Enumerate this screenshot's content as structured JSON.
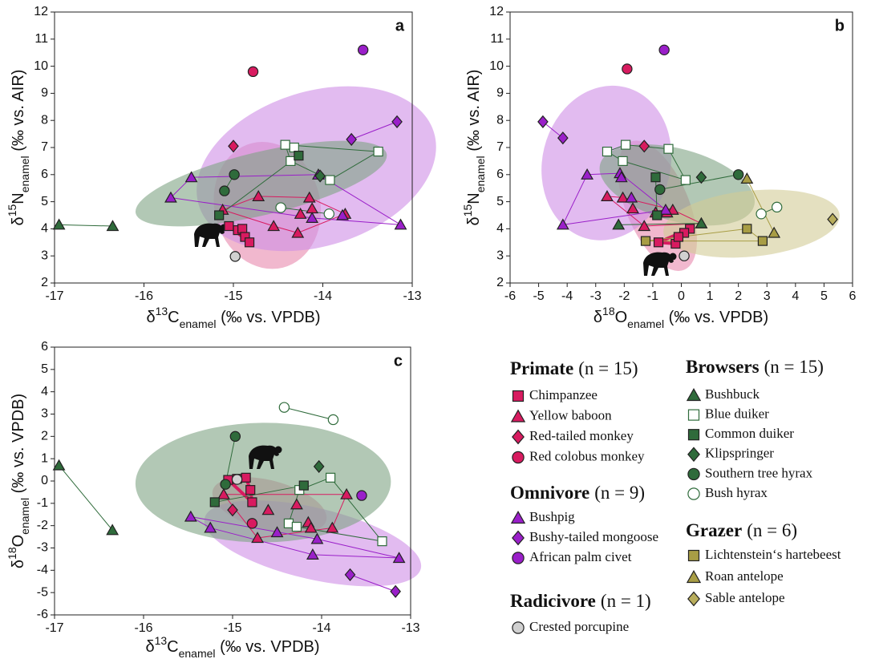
{
  "chart_data": [
    {
      "type": "scatter",
      "panel": "a",
      "xlabel": {
        "symbol": "δ",
        "sup": "13",
        "element": "C",
        "sub": "enamel",
        "unit": " (‰ vs. VPDB)"
      },
      "ylabel": {
        "symbol": "δ",
        "sup": "15",
        "element": "N",
        "sub": "enamel",
        "unit": " (‰ vs. AIR)"
      },
      "xlim": [
        -17,
        -13
      ],
      "xticks": [
        -17,
        -16,
        -15,
        -14,
        -13
      ],
      "ylim": [
        2,
        12
      ],
      "yticks": [
        2,
        3,
        4,
        5,
        6,
        7,
        8,
        9,
        10,
        11,
        12
      ],
      "series": [
        {
          "x": [
            -15.05,
            -14.95,
            -14.9,
            -14.87,
            -14.82
          ],
          "values": [
            4.1,
            3.95,
            4.0,
            3.7,
            3.5
          ]
        },
        {
          "x": [
            -15.12,
            -14.72,
            -14.55,
            -14.28,
            -14.15,
            -14.12,
            -14.25,
            -13.75
          ],
          "values": [
            4.7,
            5.2,
            4.1,
            3.85,
            5.15,
            4.75,
            4.55,
            4.55
          ]
        },
        {
          "x": [
            -15.0
          ],
          "values": [
            7.05
          ]
        },
        {
          "x": [
            -14.78
          ],
          "values": [
            9.8
          ]
        },
        {
          "x": [
            -15.47,
            -15.7,
            -14.05,
            -14.12,
            -13.13,
            -13.78
          ],
          "values": [
            5.9,
            5.15,
            6.0,
            4.4,
            4.15,
            4.5
          ]
        },
        {
          "x": [
            -13.68,
            -13.17
          ],
          "values": [
            7.3,
            7.95
          ]
        },
        {
          "x": [
            -13.55
          ],
          "values": [
            10.6
          ]
        },
        {
          "x": [
            -14.98
          ],
          "values": [
            2.98
          ]
        },
        {
          "x": [
            -16.95,
            -16.35
          ],
          "values": [
            4.15,
            4.1
          ]
        },
        {
          "x": [
            -14.42,
            -14.32,
            -14.36,
            -13.92,
            -13.38
          ],
          "values": [
            7.1,
            7.0,
            6.5,
            5.8,
            6.85
          ]
        },
        {
          "x": [
            -15.16,
            -14.27
          ],
          "values": [
            4.5,
            6.7
          ]
        },
        {
          "x": [
            -14.03
          ],
          "values": [
            5.95
          ]
        },
        {
          "x": [
            -14.99,
            -15.1
          ],
          "values": [
            6.0,
            5.4
          ]
        },
        {
          "x": [
            -14.47,
            -13.93
          ],
          "values": [
            4.78,
            4.55
          ]
        },
        {
          "x": [],
          "values": []
        },
        {
          "x": [],
          "values": []
        },
        {
          "x": [],
          "values": []
        }
      ]
    },
    {
      "type": "scatter",
      "panel": "b",
      "xlabel": {
        "symbol": "δ",
        "sup": "18",
        "element": "O",
        "sub": "enamel",
        "unit": " (‰ vs. VPDB)"
      },
      "ylabel": {
        "symbol": "δ",
        "sup": "15",
        "element": "N",
        "sub": "enamel",
        "unit": " (‰ vs. AIR)"
      },
      "xlim": [
        -6,
        6
      ],
      "xticks": [
        -6,
        -5,
        -4,
        -3,
        -2,
        -1,
        0,
        1,
        2,
        3,
        4,
        5,
        6
      ],
      "ylim": [
        2,
        12
      ],
      "yticks": [
        2,
        3,
        4,
        5,
        6,
        7,
        8,
        9,
        10,
        11,
        12
      ],
      "series": [
        {
          "x": [
            -0.8,
            -0.2,
            0.3,
            0.1,
            -0.1
          ],
          "values": [
            3.5,
            3.45,
            4.0,
            3.85,
            3.7
          ]
        },
        {
          "x": [
            -2.6,
            -2.05,
            -1.7,
            -1.3,
            -0.9,
            -0.5,
            -0.3,
            0.7
          ],
          "values": [
            5.2,
            5.15,
            4.75,
            4.1,
            4.6,
            4.6,
            4.7,
            4.2
          ]
        },
        {
          "x": [
            -1.3
          ],
          "values": [
            7.05
          ]
        },
        {
          "x": [
            -1.9
          ],
          "values": [
            9.9
          ]
        },
        {
          "x": [
            -4.15,
            -3.3,
            -2.15,
            -2.1,
            -1.75,
            -0.55
          ],
          "values": [
            4.15,
            6.0,
            6.05,
            5.9,
            5.15,
            4.7
          ]
        },
        {
          "x": [
            -4.85,
            -4.15
          ],
          "values": [
            7.95,
            7.35
          ]
        },
        {
          "x": [
            -0.6
          ],
          "values": [
            10.6
          ]
        },
        {
          "x": [
            0.1
          ],
          "values": [
            3.0
          ]
        },
        {
          "x": [
            -2.2,
            0.7
          ],
          "values": [
            4.15,
            4.2
          ]
        },
        {
          "x": [
            -2.6,
            -1.95,
            -2.05,
            -0.45,
            0.15
          ],
          "values": [
            6.85,
            7.1,
            6.5,
            6.95,
            5.8
          ]
        },
        {
          "x": [
            -0.9,
            -0.85
          ],
          "values": [
            5.9,
            4.5
          ]
        },
        {
          "x": [
            0.7
          ],
          "values": [
            5.9
          ]
        },
        {
          "x": [
            -0.75,
            2.0
          ],
          "values": [
            5.45,
            6.0
          ]
        },
        {
          "x": [
            2.8,
            3.35
          ],
          "values": [
            4.55,
            4.8
          ]
        },
        {
          "x": [
            -1.25,
            2.3,
            2.85
          ],
          "values": [
            3.55,
            4.0,
            3.55
          ]
        },
        {
          "x": [
            2.3,
            3.25
          ],
          "values": [
            5.85,
            3.85
          ]
        },
        {
          "x": [
            5.3
          ],
          "values": [
            4.35
          ]
        }
      ]
    },
    {
      "type": "scatter",
      "panel": "c",
      "xlabel": {
        "symbol": "δ",
        "sup": "13",
        "element": "C",
        "sub": "enamel",
        "unit": " (‰ vs. VPDB)"
      },
      "ylabel": {
        "symbol": "δ",
        "sup": "18",
        "element": "O",
        "sub": "enamel",
        "unit": " (‰ vs. VPDB)"
      },
      "xlim": [
        -17,
        -13
      ],
      "xticks": [
        -17,
        -16,
        -15,
        -14,
        -13
      ],
      "ylim": [
        -6,
        6
      ],
      "yticks": [
        -6,
        -5,
        -4,
        -3,
        -2,
        -1,
        0,
        1,
        2,
        3,
        4,
        5,
        6
      ],
      "series": [
        {
          "x": [
            -15.05,
            -14.95,
            -14.85,
            -14.8,
            -14.78
          ],
          "values": [
            0.05,
            0.1,
            0.15,
            -0.4,
            -0.95
          ]
        },
        {
          "x": [
            -15.1,
            -14.72,
            -14.6,
            -14.28,
            -14.15,
            -14.12,
            -13.88,
            -13.72
          ],
          "values": [
            -0.6,
            -2.55,
            -1.3,
            -1.05,
            -1.85,
            -2.1,
            -2.1,
            -0.6
          ]
        },
        {
          "x": [
            -15.0
          ],
          "values": [
            -1.3
          ]
        },
        {
          "x": [
            -14.78
          ],
          "values": [
            -1.9
          ]
        },
        {
          "x": [
            -15.47,
            -15.25,
            -14.05,
            -14.1,
            -13.13,
            -14.5
          ],
          "values": [
            -1.6,
            -2.1,
            -2.6,
            -3.3,
            -3.45,
            -2.3
          ]
        },
        {
          "x": [
            -13.68,
            -13.17
          ],
          "values": [
            -4.2,
            -4.95
          ]
        },
        {
          "x": [
            -13.55
          ],
          "values": [
            -0.65
          ]
        },
        {
          "x": [
            -14.95
          ],
          "values": [
            0.07
          ]
        },
        {
          "x": [
            -16.95,
            -16.35
          ],
          "values": [
            0.7,
            -2.2
          ]
        },
        {
          "x": [
            -14.37,
            -14.28,
            -14.25,
            -13.9,
            -13.32
          ],
          "values": [
            -1.9,
            -2.05,
            -0.4,
            0.15,
            -2.7
          ]
        },
        {
          "x": [
            -15.2,
            -14.2
          ],
          "values": [
            -0.95,
            -0.2
          ]
        },
        {
          "x": [
            -14.03
          ],
          "values": [
            0.65
          ]
        },
        {
          "x": [
            -14.97,
            -15.08
          ],
          "values": [
            2.0,
            -0.15
          ]
        },
        {
          "x": [
            -14.42,
            -13.87
          ],
          "values": [
            3.3,
            2.75
          ]
        },
        {
          "x": [],
          "values": []
        },
        {
          "x": [],
          "values": []
        },
        {
          "x": [],
          "values": []
        }
      ]
    }
  ],
  "legend": {
    "groups": [
      {
        "title": "Primate",
        "count": "(n = 15)",
        "color": "#e889ad",
        "items": [
          {
            "name": "Chimpanzee",
            "marker": "square",
            "color": "#d81b60",
            "edge": "#222222"
          },
          {
            "name": "Yellow baboon",
            "marker": "triangle",
            "color": "#d81b60",
            "edge": "#222222"
          },
          {
            "name": "Red-tailed monkey",
            "marker": "diamond",
            "color": "#d81b60",
            "edge": "#222222"
          },
          {
            "name": "Red colobus monkey",
            "marker": "circle",
            "color": "#d81b60",
            "edge": "#222222"
          }
        ]
      },
      {
        "title": "Omnivore",
        "count": "(n = 9)",
        "color": "#cf8ee6",
        "items": [
          {
            "name": "Bushpig",
            "marker": "triangle",
            "color": "#9a1fc9",
            "edge": "#222222"
          },
          {
            "name": "Bushy-tailed mongoose",
            "marker": "diamond",
            "color": "#9a1fc9",
            "edge": "#222222"
          },
          {
            "name": "African palm civet",
            "marker": "circle",
            "color": "#9a1fc9",
            "edge": "#222222"
          }
        ]
      },
      {
        "title": "Radicivore",
        "count": "(n = 1)",
        "color": "#cccccc",
        "items": [
          {
            "name": "Crested porcupine",
            "marker": "circle",
            "color": "#d0d0d0",
            "edge": "#222222"
          }
        ]
      },
      {
        "title": "Browsers",
        "count": "(n = 15)",
        "color": "#7fa383",
        "items": [
          {
            "name": "Bushbuck",
            "marker": "triangle",
            "color": "#2f6b3b",
            "edge": "#222222"
          },
          {
            "name": "Blue duiker",
            "marker": "square",
            "color": "#ffffff",
            "edge": "#2f6b3b"
          },
          {
            "name": "Common duiker",
            "marker": "square",
            "color": "#2f6b3b",
            "edge": "#222222"
          },
          {
            "name": "Klipspringer",
            "marker": "diamond",
            "color": "#2f6b3b",
            "edge": "#222222"
          },
          {
            "name": "Southern tree hyrax",
            "marker": "circle",
            "color": "#2f6b3b",
            "edge": "#222222"
          },
          {
            "name": "Bush hyrax",
            "marker": "circle",
            "color": "#ffffff",
            "edge": "#2f6b3b"
          }
        ]
      },
      {
        "title": "Grazer",
        "count": "(n = 6)",
        "color": "#d2cc96",
        "items": [
          {
            "name": "Lichtenstein‘s hartebeest",
            "marker": "square",
            "color": "#a89d45",
            "edge": "#222222"
          },
          {
            "name": "Roan antelope",
            "marker": "triangle",
            "color": "#a89d45",
            "edge": "#222222"
          },
          {
            "name": "Sable antelope",
            "marker": "diamond",
            "color": "#b8ad5c",
            "edge": "#222222"
          }
        ]
      }
    ]
  }
}
